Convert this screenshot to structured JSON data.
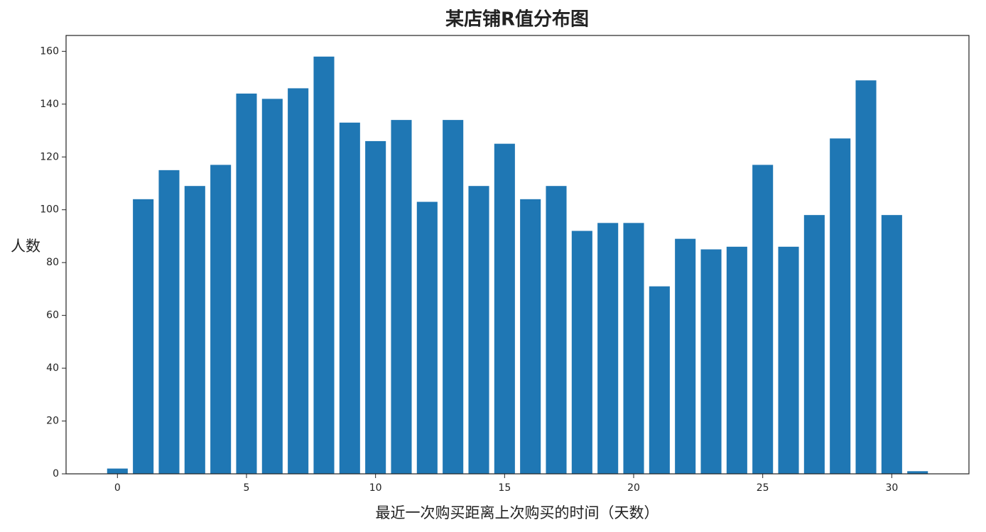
{
  "chart_data": {
    "type": "bar",
    "title": "某店铺R值分布图",
    "x_label": "最近一次购买距离上次购买的时间（天数）",
    "y_label": "人数",
    "x": [
      0,
      1,
      2,
      3,
      4,
      5,
      6,
      7,
      8,
      9,
      10,
      11,
      12,
      13,
      14,
      15,
      16,
      17,
      18,
      19,
      20,
      21,
      22,
      23,
      24,
      25,
      26,
      27,
      28,
      29,
      30,
      31
    ],
    "values": [
      2,
      104,
      115,
      109,
      117,
      144,
      142,
      146,
      158,
      133,
      126,
      134,
      103,
      134,
      109,
      125,
      104,
      109,
      92,
      95,
      95,
      71,
      89,
      85,
      86,
      117,
      86,
      98,
      127,
      149,
      98,
      1
    ],
    "color": "#1f77b4",
    "bar_width": 0.8,
    "xlim": [
      -1.99,
      32.99
    ],
    "xticks": [
      0,
      5,
      10,
      15,
      20,
      25,
      30
    ],
    "ylim": [
      0,
      166
    ],
    "yticks": [
      0,
      20,
      40,
      60,
      80,
      100,
      120,
      140,
      160
    ]
  }
}
